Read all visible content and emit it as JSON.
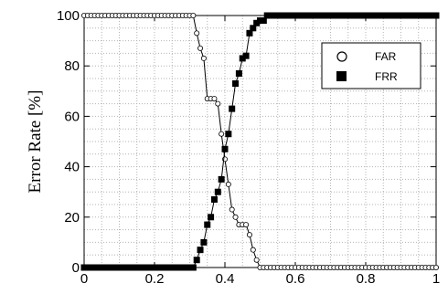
{
  "chart_data": {
    "type": "scatter",
    "title": "",
    "xlabel": "",
    "ylabel": "Error Rate [%]",
    "xlim": [
      0,
      1
    ],
    "ylim": [
      0,
      100
    ],
    "x_ticks": [
      "0",
      "0.2",
      "0.4",
      "0.6",
      "0.8",
      "1"
    ],
    "y_ticks": [
      "0",
      "20",
      "40",
      "60",
      "80",
      "100"
    ],
    "grid": true,
    "legend": "top-right",
    "series": [
      {
        "name": "FAR",
        "marker": "open-circle",
        "x": [
          0,
          0.01,
          0.02,
          0.03,
          0.04,
          0.05,
          0.06,
          0.07,
          0.08,
          0.09,
          0.1,
          0.11,
          0.12,
          0.13,
          0.14,
          0.15,
          0.16,
          0.17,
          0.18,
          0.19,
          0.2,
          0.21,
          0.22,
          0.23,
          0.24,
          0.25,
          0.26,
          0.27,
          0.28,
          0.29,
          0.3,
          0.31,
          0.32,
          0.33,
          0.34,
          0.35,
          0.36,
          0.37,
          0.38,
          0.39,
          0.4,
          0.41,
          0.42,
          0.43,
          0.44,
          0.45,
          0.46,
          0.47,
          0.48,
          0.49,
          0.5,
          0.51,
          0.52,
          0.53,
          0.54,
          0.55,
          0.56,
          0.57,
          0.58,
          0.59,
          0.6,
          0.61,
          0.62,
          0.63,
          0.64,
          0.65,
          0.66,
          0.67,
          0.68,
          0.69,
          0.7,
          0.71,
          0.72,
          0.73,
          0.74,
          0.75,
          0.76,
          0.77,
          0.78,
          0.79,
          0.8,
          0.81,
          0.82,
          0.83,
          0.84,
          0.85,
          0.86,
          0.87,
          0.88,
          0.89,
          0.9,
          0.91,
          0.92,
          0.93,
          0.94,
          0.95,
          0.96,
          0.97,
          0.98,
          0.99,
          1.0
        ],
        "y": [
          100,
          100,
          100,
          100,
          100,
          100,
          100,
          100,
          100,
          100,
          100,
          100,
          100,
          100,
          100,
          100,
          100,
          100,
          100,
          100,
          100,
          100,
          100,
          100,
          100,
          100,
          100,
          100,
          100,
          100,
          100,
          100,
          93,
          87,
          83,
          67,
          67,
          67,
          65,
          53,
          43,
          33,
          23,
          20,
          17,
          17,
          17,
          13,
          7,
          3,
          0,
          0,
          0,
          0,
          0,
          0,
          0,
          0,
          0,
          0,
          0,
          0,
          0,
          0,
          0,
          0,
          0,
          0,
          0,
          0,
          0,
          0,
          0,
          0,
          0,
          0,
          0,
          0,
          0,
          0,
          0,
          0,
          0,
          0,
          0,
          0,
          0,
          0,
          0,
          0,
          0,
          0,
          0,
          0,
          0,
          0,
          0,
          0,
          0,
          0,
          0
        ]
      },
      {
        "name": "FRR",
        "marker": "filled-square",
        "x": [
          0,
          0.01,
          0.02,
          0.03,
          0.04,
          0.05,
          0.06,
          0.07,
          0.08,
          0.09,
          0.1,
          0.11,
          0.12,
          0.13,
          0.14,
          0.15,
          0.16,
          0.17,
          0.18,
          0.19,
          0.2,
          0.21,
          0.22,
          0.23,
          0.24,
          0.25,
          0.26,
          0.27,
          0.28,
          0.29,
          0.3,
          0.31,
          0.32,
          0.33,
          0.34,
          0.35,
          0.36,
          0.37,
          0.38,
          0.39,
          0.4,
          0.41,
          0.42,
          0.43,
          0.44,
          0.45,
          0.46,
          0.47,
          0.48,
          0.49,
          0.5,
          0.51,
          0.52,
          0.53,
          0.54,
          0.55,
          0.56,
          0.57,
          0.58,
          0.59,
          0.6,
          0.61,
          0.62,
          0.63,
          0.64,
          0.65,
          0.66,
          0.67,
          0.68,
          0.69,
          0.7,
          0.71,
          0.72,
          0.73,
          0.74,
          0.75,
          0.76,
          0.77,
          0.78,
          0.79,
          0.8,
          0.81,
          0.82,
          0.83,
          0.84,
          0.85,
          0.86,
          0.87,
          0.88,
          0.89,
          0.9,
          0.91,
          0.92,
          0.93,
          0.94,
          0.95,
          0.96,
          0.97,
          0.98,
          0.99,
          1.0
        ],
        "y": [
          0,
          0,
          0,
          0,
          0,
          0,
          0,
          0,
          0,
          0,
          0,
          0,
          0,
          0,
          0,
          0,
          0,
          0,
          0,
          0,
          0,
          0,
          0,
          0,
          0,
          0,
          0,
          0,
          0,
          0,
          0,
          0,
          3,
          7,
          10,
          17,
          20,
          27,
          30,
          35,
          47,
          53,
          63,
          73,
          77,
          83,
          84,
          93,
          95,
          97,
          98,
          98,
          100,
          100,
          100,
          100,
          100,
          100,
          100,
          100,
          100,
          100,
          100,
          100,
          100,
          100,
          100,
          100,
          100,
          100,
          100,
          100,
          100,
          100,
          100,
          100,
          100,
          100,
          100,
          100,
          100,
          100,
          100,
          100,
          100,
          100,
          100,
          100,
          100,
          100,
          100,
          100,
          100,
          100,
          100,
          100,
          100,
          100,
          100,
          100,
          100
        ]
      }
    ]
  }
}
